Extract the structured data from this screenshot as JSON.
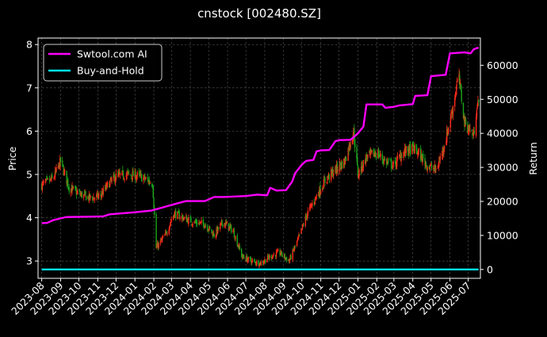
{
  "chart_data": {
    "type": "line",
    "title": "cnstock [002480.SZ]",
    "ylabel_left": "Price",
    "ylabel_right": "Return",
    "xlabel": "",
    "ylim_left": [
      2.6,
      8.15
    ],
    "ylim_right": [
      -2600,
      68000
    ],
    "yticks_left": [
      "3",
      "4",
      "5",
      "6",
      "7",
      "8"
    ],
    "yticks_right": [
      "0",
      "10000",
      "20000",
      "30000",
      "40000",
      "50000",
      "60000"
    ],
    "xticks": [
      "2023-08",
      "2023-09",
      "2023-10",
      "2023-11",
      "2023-12",
      "2024-01",
      "2024-02",
      "2024-03",
      "2024-04",
      "2024-05",
      "2024-06",
      "2024-07",
      "2024-08",
      "2024-09",
      "2024-10",
      "2024-11",
      "2024-12",
      "2025-01",
      "2025-02",
      "2025-03",
      "2025-04",
      "2025-05",
      "2025-06",
      "2025-07"
    ],
    "grid": true,
    "legend_position": "top-left",
    "colors": {
      "background": "#000000",
      "strategy": "#ff00ff",
      "buy_and_hold": "#00e5ee",
      "candle_up": "#ff2a1a",
      "candle_down": "#1aa51a",
      "grid": "#5a5a5a"
    },
    "price_anchors": {
      "x": [
        "2023-08-01",
        "2023-08-20",
        "2023-09-01",
        "2023-09-15",
        "2023-10-01",
        "2023-10-20",
        "2023-11-05",
        "2023-11-20",
        "2023-12-01",
        "2023-12-20",
        "2024-01-10",
        "2024-01-30",
        "2024-02-05",
        "2024-02-20",
        "2024-03-05",
        "2024-03-20",
        "2024-04-05",
        "2024-04-25",
        "2024-05-10",
        "2024-05-25",
        "2024-06-10",
        "2024-06-25",
        "2024-07-10",
        "2024-07-25",
        "2024-08-10",
        "2024-08-25",
        "2024-09-10",
        "2024-09-25",
        "2024-10-10",
        "2024-10-25",
        "2024-11-10",
        "2024-11-25",
        "2024-12-10",
        "2024-12-25",
        "2025-01-01",
        "2025-01-15",
        "2025-02-01",
        "2025-02-15",
        "2025-03-01",
        "2025-03-15",
        "2025-04-01",
        "2025-04-10",
        "2025-04-25",
        "2025-05-10",
        "2025-05-25",
        "2025-06-05",
        "2025-06-15",
        "2025-06-25",
        "2025-07-10",
        "2025-07-15"
      ],
      "y": [
        4.75,
        4.9,
        5.3,
        4.7,
        4.55,
        4.45,
        4.5,
        4.8,
        4.95,
        5.0,
        4.95,
        4.8,
        3.3,
        3.6,
        4.1,
        4.0,
        3.9,
        3.85,
        3.6,
        3.9,
        3.7,
        3.1,
        3.0,
        2.95,
        3.1,
        3.2,
        3.0,
        3.5,
        4.1,
        4.5,
        4.9,
        5.1,
        5.3,
        6.0,
        5.0,
        5.4,
        5.5,
        5.3,
        5.2,
        5.5,
        5.6,
        5.5,
        5.2,
        5.1,
        5.8,
        6.5,
        7.3,
        6.2,
        5.9,
        6.6
      ]
    },
    "series": [
      {
        "name": "Swtool.com AI",
        "x": [
          "2023-08-01",
          "2023-08-10",
          "2023-08-20",
          "2023-09-10",
          "2023-11-10",
          "2023-11-20",
          "2024-01-01",
          "2024-01-28",
          "2024-02-15",
          "2024-03-10",
          "2024-03-25",
          "2024-04-25",
          "2024-05-10",
          "2024-05-25",
          "2024-07-01",
          "2024-07-20",
          "2024-08-05",
          "2024-08-10",
          "2024-08-20",
          "2024-09-05",
          "2024-09-15",
          "2024-09-20",
          "2024-10-01",
          "2024-10-08",
          "2024-10-20",
          "2024-10-25",
          "2024-11-01",
          "2024-11-15",
          "2024-11-25",
          "2024-12-01",
          "2024-12-20",
          "2025-01-01",
          "2025-01-10",
          "2025-01-15",
          "2025-02-10",
          "2025-02-15",
          "2025-03-01",
          "2025-03-10",
          "2025-04-01",
          "2025-04-05",
          "2025-04-25",
          "2025-05-01",
          "2025-05-25",
          "2025-06-01",
          "2025-06-25",
          "2025-07-05",
          "2025-07-10",
          "2025-07-18"
        ],
        "values": [
          13600,
          13700,
          14500,
          15400,
          15600,
          16200,
          16800,
          17300,
          18200,
          19400,
          20100,
          20100,
          21300,
          21300,
          21600,
          22000,
          21800,
          24000,
          23200,
          23300,
          25800,
          28300,
          30800,
          31900,
          32200,
          34700,
          35000,
          35100,
          37700,
          38000,
          38100,
          40000,
          42000,
          48500,
          48500,
          47500,
          47800,
          48200,
          48600,
          51000,
          51200,
          56800,
          57200,
          63500,
          63800,
          63500,
          64700,
          65200
        ]
      },
      {
        "name": "Buy-and-Hold",
        "x": [
          "2023-08-01",
          "2025-07-18"
        ],
        "values": [
          0,
          0
        ]
      }
    ]
  }
}
